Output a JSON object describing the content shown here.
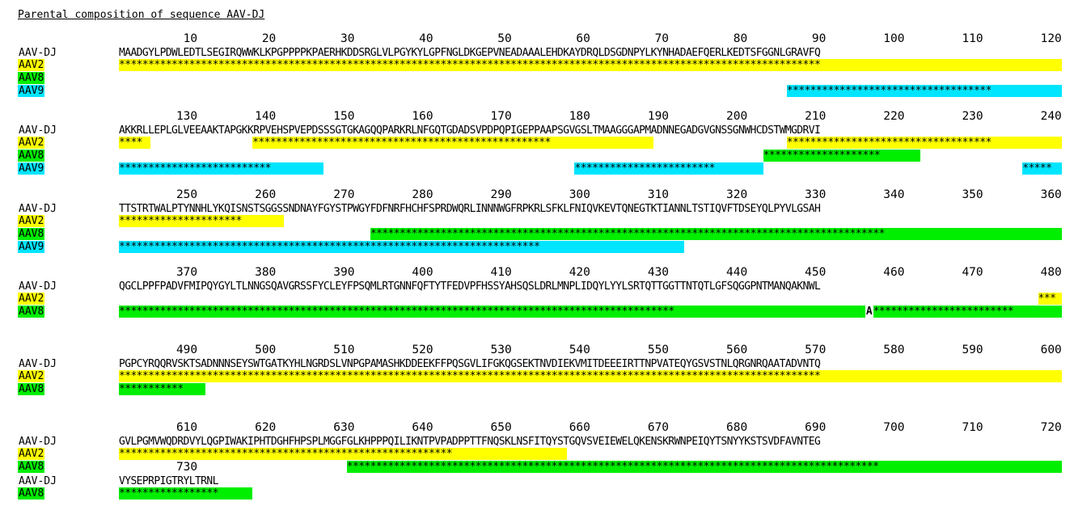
{
  "title": "Parental composition of sequence AAV-DJ",
  "colors": {
    "AAV2": "#ffff00",
    "AAV8": "#00ee00",
    "AAV9": "#00e5ff"
  },
  "blocks": [
    {
      "ruler": [
        "10",
        "20",
        "30",
        "40",
        "50",
        "60",
        "70",
        "80",
        "90",
        "100",
        "110",
        "120"
      ],
      "start": 1,
      "end": 120,
      "query": {
        "label": "AAV-DJ",
        "sequence": "MAADGYLPDWLEDTLSEGIRQWWKLKPGPPPPKPAERHKDDSRGLVLPGYKYLGPFNGLDKGEPVNEADAAALEHDKAYDRQLDSGDNPYLKYNHADAEFQERLKEDTSFGGNLGRAVFQ"
      },
      "tracks": [
        {
          "label": "AAV2",
          "color": "AAV2",
          "segments": [
            [
              1,
              120
            ]
          ]
        },
        {
          "label": "AAV8",
          "color": "AAV8",
          "segments": []
        },
        {
          "label": "AAV9",
          "color": "AAV9",
          "segments": [
            [
              86,
              120
            ]
          ]
        }
      ]
    },
    {
      "ruler": [
        "130",
        "140",
        "150",
        "160",
        "170",
        "180",
        "190",
        "200",
        "210",
        "220",
        "230",
        "240"
      ],
      "start": 121,
      "end": 240,
      "query": {
        "label": "AAV-DJ",
        "sequence": "AKKRLLEPLGLVEEAAKTAPGKKRPVEHSPVEPDSSSGTGKAGQQPARKRLNFGQTGDADSVPDPQPIGEPPAAPSGVGSLTMAAGGGAPMADNNEGADGVGNSSGNWHCDSTWMGDRVI"
      },
      "tracks": [
        {
          "label": "AAV2",
          "color": "AAV2",
          "segments": [
            [
              121,
              124
            ],
            [
              138,
              188
            ],
            [
              206,
              240
            ]
          ]
        },
        {
          "label": "AAV8",
          "color": "AAV8",
          "segments": [
            [
              203,
              222
            ]
          ]
        },
        {
          "label": "AAV9",
          "color": "AAV9",
          "segments": [
            [
              121,
              146
            ],
            [
              179,
              202
            ],
            [
              236,
              240
            ]
          ]
        }
      ]
    },
    {
      "ruler": [
        "250",
        "260",
        "270",
        "280",
        "290",
        "300",
        "310",
        "320",
        "330",
        "340",
        "350",
        "360"
      ],
      "start": 241,
      "end": 360,
      "query": {
        "label": "AAV-DJ",
        "sequence": "TTSTRTWALPTYNNHLYKQISNSTSGGSSNDNAYFGYSTPWGYFDFNRFHCHFSPRDWQRLINNNWGFRPKRLSFKLFNIQVKEVTQNEGTKTIANNLTSTIQVFTDSEYQLPYVLGSAH"
      },
      "tracks": [
        {
          "label": "AAV2",
          "color": "AAV2",
          "segments": [
            [
              241,
              261
            ]
          ]
        },
        {
          "label": "AAV8",
          "color": "AAV8",
          "segments": [
            [
              273,
              360
            ]
          ]
        },
        {
          "label": "AAV9",
          "color": "AAV9",
          "segments": [
            [
              241,
              312
            ]
          ]
        }
      ]
    },
    {
      "ruler": [
        "370",
        "380",
        "390",
        "400",
        "410",
        "420",
        "430",
        "440",
        "450",
        "460",
        "470",
        "480"
      ],
      "start": 361,
      "end": 480,
      "query": {
        "label": "AAV-DJ",
        "sequence": "QGCLPPFPADVFMIPQYGYLTLNNGSQAVGRSSFYCLEYFPSQMLRTGNNFQFTYTFEDVPFHSSYAHSQSLDRLMNPLIDQYLYYLSRTQTTGGTTNTQTLGFSQGGPNTMANQAKNWL"
      },
      "tracks": [
        {
          "label": "AAV2",
          "color": "AAV2",
          "segments": [
            [
              478,
              480
            ]
          ]
        },
        {
          "label": "AAV8",
          "color": "AAV8",
          "segments": [
            [
              361,
              455
            ],
            [
              457,
              480
            ]
          ],
          "mismatch": {
            "pos": 456,
            "char": "A"
          }
        }
      ]
    },
    {
      "ruler": [
        "490",
        "500",
        "510",
        "520",
        "530",
        "540",
        "550",
        "560",
        "570",
        "580",
        "590",
        "600"
      ],
      "start": 481,
      "end": 600,
      "query": {
        "label": "AAV-DJ",
        "sequence": "PGPCYRQQRVSKTSADNNNSEYSWTGATKYHLNGRDSLVNPGPAMASHKDDEEKFFPQSGVLIFGKQGSEKTNVDIEKVMITDEEEIRTTNPVATEQYGSVSTNLQRGNRQAATADVNTQ"
      },
      "tracks": [
        {
          "label": "AAV2",
          "color": "AAV2",
          "segments": [
            [
              481,
              600
            ]
          ]
        },
        {
          "label": "AAV8",
          "color": "AAV8",
          "segments": [
            [
              481,
              491
            ]
          ]
        }
      ]
    },
    {
      "ruler": [
        "610",
        "620",
        "630",
        "640",
        "650",
        "660",
        "670",
        "680",
        "690",
        "700",
        "710",
        "720"
      ],
      "start": 601,
      "end": 720,
      "query": {
        "label": "AAV-DJ",
        "sequence": "GVLPGMVWQDRDVYLQGPIWAKIPHTDGHFHPSPLMGGFGLKHPPPQILIKNTPVPADPPTTFNQSKLNSFITQYSTGQVSVEIEWELQKENSKRWNPEIQYTSNYYKSTSVDFAVNTEG"
      },
      "tracks": [
        {
          "label": "AAV2",
          "color": "AAV2",
          "segments": [
            [
              601,
              657
            ]
          ]
        },
        {
          "label": "AAV8",
          "color": "AAV8",
          "segments": [
            [
              630,
              720
            ]
          ]
        }
      ]
    },
    {
      "ruler": [
        "730"
      ],
      "start": 721,
      "end": 737,
      "query": {
        "label": "AAV-DJ",
        "sequence": "VYSEPRPIGTRYLTRNL"
      },
      "tracks": [
        {
          "label": "AAV8",
          "color": "AAV8",
          "segments": [
            [
              721,
              737
            ]
          ]
        }
      ]
    }
  ]
}
